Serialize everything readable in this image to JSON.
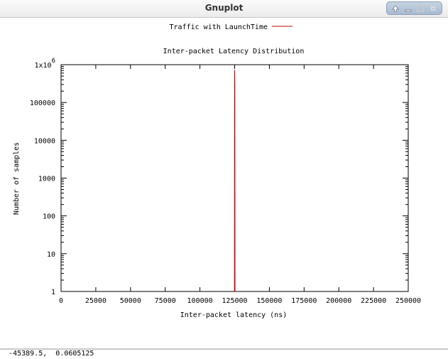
{
  "window": {
    "title": "Gnuplot",
    "buttons": [
      "up-icon",
      "minimize-icon",
      "maximize-icon",
      "close-icon"
    ]
  },
  "status": {
    "coords": "-45389.5,  0.0605125"
  },
  "chart_data": {
    "type": "line",
    "title": "Inter-packet Latency Distribution",
    "xlabel": "Inter-packet latency (ns)",
    "ylabel": "Number of samples",
    "xlim": [
      0,
      250000
    ],
    "ylim": [
      1,
      1000000
    ],
    "yscale": "log",
    "grid": false,
    "legend_position": "top-center",
    "x_ticks": [
      "0",
      "25000",
      "50000",
      "75000",
      "100000",
      "125000",
      "150000",
      "175000",
      "200000",
      "225000",
      "250000"
    ],
    "y_ticks": [
      "1",
      "10",
      "100",
      "1000",
      "10000",
      "100000",
      "1x10^6"
    ],
    "series": [
      {
        "name": "Traffic with LaunchTime",
        "color": "#cc0000",
        "x": [
          124900,
          125000,
          125100,
          125200
        ],
        "y": [
          1,
          700000,
          250000,
          1
        ]
      }
    ]
  }
}
